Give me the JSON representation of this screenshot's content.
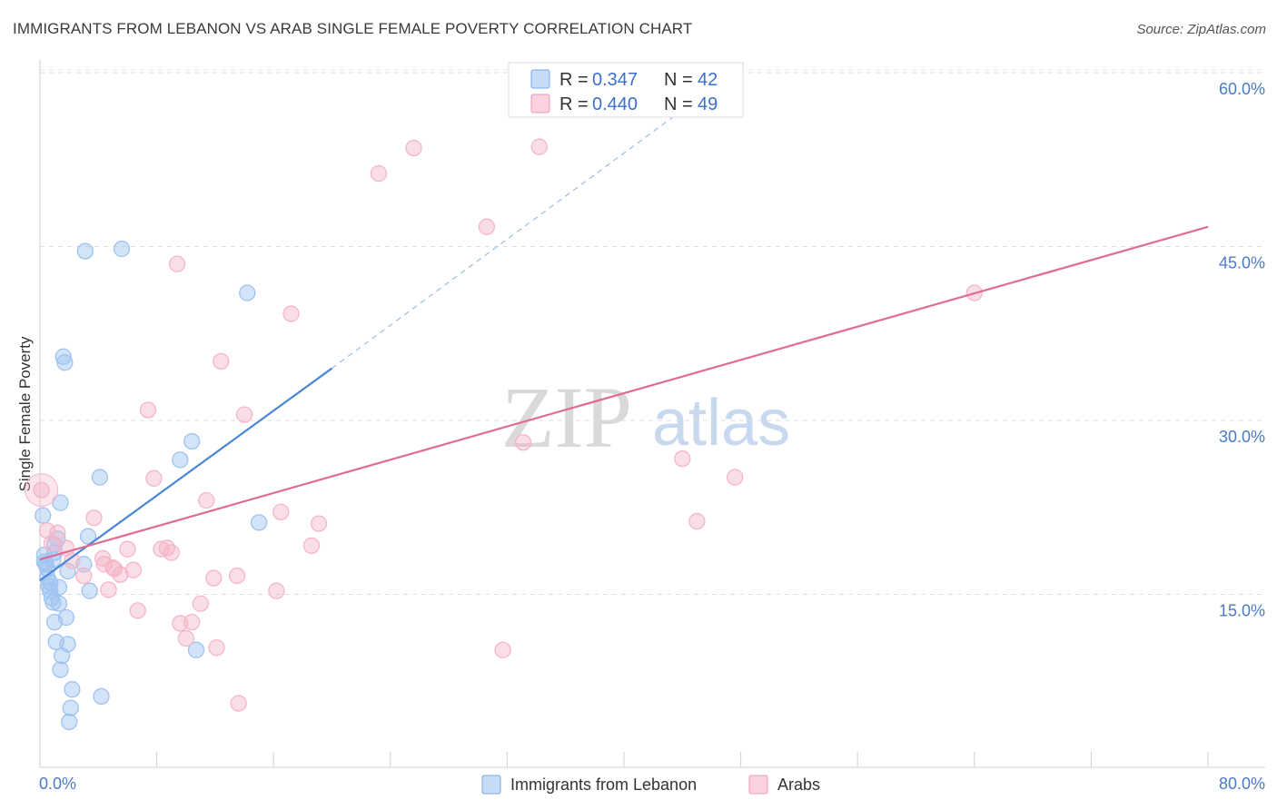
{
  "title": "IMMIGRANTS FROM LEBANON VS ARAB SINGLE FEMALE POVERTY CORRELATION CHART",
  "source": "Source: ZipAtlas.com",
  "watermark": {
    "zip": "ZIP",
    "atlas": "atlas"
  },
  "legend_top": [
    {
      "r_label": "R =",
      "r": "0.347",
      "n_label": "N =",
      "n": "42",
      "color": "#9dc3f0"
    },
    {
      "r_label": "R =",
      "r": "0.440",
      "n_label": "N =",
      "n": "49",
      "color": "#f5b5c8"
    }
  ],
  "legend_bottom": [
    {
      "label": "Immigrants from Lebanon",
      "color": "#9dc3f0"
    },
    {
      "label": "Arabs",
      "color": "#f5b5c8"
    }
  ],
  "chart_data": {
    "type": "scatter",
    "title": "IMMIGRANTS FROM LEBANON VS ARAB SINGLE FEMALE POVERTY CORRELATION CHART",
    "xlabel": "",
    "ylabel": "Single Female Poverty",
    "xlim": [
      0,
      80
    ],
    "ylim": [
      0,
      62
    ],
    "x_tick_labels": [
      "0.0%",
      "80.0%"
    ],
    "y_ticks": [
      15,
      30,
      45,
      60
    ],
    "y_tick_labels": [
      "15.0%",
      "30.0%",
      "45.0%",
      "60.0%"
    ],
    "series": [
      {
        "name": "Immigrants from Lebanon",
        "color": "#4a86d8",
        "fill": "#9dc3f0",
        "points": [
          [
            0.2,
            21.8
          ],
          [
            0.3,
            18.4
          ],
          [
            0.4,
            17.6
          ],
          [
            0.5,
            17.2
          ],
          [
            0.5,
            16.5
          ],
          [
            0.7,
            16.0
          ],
          [
            0.7,
            15.3
          ],
          [
            0.8,
            14.7
          ],
          [
            0.9,
            18.0
          ],
          [
            0.9,
            14.3
          ],
          [
            1.0,
            19.3
          ],
          [
            1.0,
            12.6
          ],
          [
            1.1,
            10.9
          ],
          [
            1.2,
            19.8
          ],
          [
            1.3,
            15.6
          ],
          [
            1.3,
            14.2
          ],
          [
            1.4,
            22.9
          ],
          [
            1.4,
            8.5
          ],
          [
            1.5,
            9.7
          ],
          [
            1.6,
            35.5
          ],
          [
            1.7,
            35.0
          ],
          [
            1.8,
            13.0
          ],
          [
            1.9,
            17.0
          ],
          [
            1.9,
            10.7
          ],
          [
            2.0,
            4.0
          ],
          [
            2.1,
            5.2
          ],
          [
            2.2,
            6.8
          ],
          [
            3.0,
            17.6
          ],
          [
            3.1,
            44.6
          ],
          [
            3.3,
            20.0
          ],
          [
            3.4,
            15.3
          ],
          [
            4.1,
            25.1
          ],
          [
            4.2,
            6.2
          ],
          [
            5.6,
            44.8
          ],
          [
            9.6,
            26.6
          ],
          [
            10.4,
            28.2
          ],
          [
            10.7,
            10.2
          ],
          [
            14.2,
            41.0
          ],
          [
            15.0,
            21.2
          ],
          [
            0.3,
            17.8
          ],
          [
            0.6,
            15.7
          ],
          [
            1.0,
            18.6
          ]
        ],
        "trend": {
          "x": [
            0.0,
            20.0
          ],
          "y": [
            16.2,
            34.5
          ],
          "dashed_extension_to": [
            45.0,
            57.7
          ]
        }
      },
      {
        "name": "Arabs",
        "color": "#e06b93",
        "fill": "#f5b5c8",
        "points": [
          [
            0.1,
            24.0
          ],
          [
            0.5,
            20.5
          ],
          [
            0.8,
            19.4
          ],
          [
            1.2,
            20.3
          ],
          [
            1.8,
            19.0
          ],
          [
            2.2,
            17.9
          ],
          [
            3.0,
            16.6
          ],
          [
            3.7,
            21.6
          ],
          [
            4.3,
            18.1
          ],
          [
            4.4,
            17.6
          ],
          [
            4.7,
            15.4
          ],
          [
            5.1,
            17.2
          ],
          [
            5.5,
            16.7
          ],
          [
            6.0,
            18.9
          ],
          [
            6.4,
            17.1
          ],
          [
            6.7,
            13.6
          ],
          [
            7.4,
            30.9
          ],
          [
            7.8,
            25.0
          ],
          [
            8.3,
            18.9
          ],
          [
            8.7,
            19.0
          ],
          [
            9.0,
            18.6
          ],
          [
            9.4,
            43.5
          ],
          [
            9.6,
            12.5
          ],
          [
            10.0,
            11.2
          ],
          [
            10.4,
            12.6
          ],
          [
            11.0,
            14.2
          ],
          [
            11.4,
            23.1
          ],
          [
            11.9,
            16.4
          ],
          [
            12.4,
            35.1
          ],
          [
            13.5,
            16.6
          ],
          [
            13.6,
            5.6
          ],
          [
            14.0,
            30.5
          ],
          [
            16.2,
            15.3
          ],
          [
            16.5,
            22.1
          ],
          [
            17.2,
            39.2
          ],
          [
            18.6,
            19.2
          ],
          [
            19.1,
            21.1
          ],
          [
            23.2,
            51.3
          ],
          [
            25.6,
            53.5
          ],
          [
            30.6,
            46.7
          ],
          [
            31.7,
            10.2
          ],
          [
            33.1,
            28.1
          ],
          [
            34.2,
            53.6
          ],
          [
            44.0,
            26.7
          ],
          [
            45.0,
            21.3
          ],
          [
            47.6,
            25.1
          ],
          [
            64.0,
            41.0
          ],
          [
            12.1,
            10.4
          ],
          [
            5.0,
            17.3
          ]
        ],
        "trend": {
          "x": [
            0.0,
            80.0
          ],
          "y": [
            18.0,
            46.7
          ]
        }
      }
    ]
  }
}
